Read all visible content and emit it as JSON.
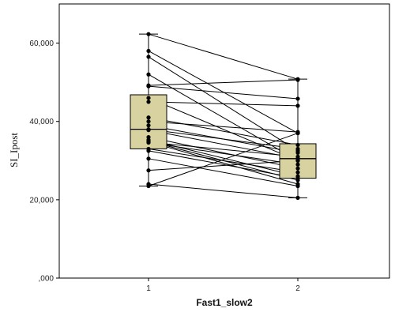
{
  "chart_data": {
    "type": "boxplot",
    "xlabel": "Fast1_slow2",
    "ylabel": "SI_Ipost",
    "categories": [
      "1",
      "2"
    ],
    "ylim": [
      0,
      70000
    ],
    "yticks": [
      0,
      20000,
      40000,
      60000
    ],
    "ytick_labels": [
      ",000",
      "20,000",
      "40,000",
      "60,000"
    ],
    "grid": false,
    "box_color": "#d8d2a0",
    "boxes": [
      {
        "category": "1",
        "whisker_low": 23500,
        "q1": 33000,
        "median": 38000,
        "q3": 46800,
        "whisker_high": 62300
      },
      {
        "category": "2",
        "whisker_low": 20500,
        "q1": 25500,
        "median": 30500,
        "q3": 34300,
        "whisker_high": 50800
      }
    ],
    "pairs": [
      [
        62300,
        50800
      ],
      [
        58000,
        37000
      ],
      [
        56500,
        32500
      ],
      [
        52000,
        30000
      ],
      [
        49200,
        50600
      ],
      [
        49000,
        45800
      ],
      [
        46000,
        30000
      ],
      [
        45000,
        44000
      ],
      [
        41000,
        34000
      ],
      [
        40000,
        37300
      ],
      [
        39000,
        32000
      ],
      [
        38000,
        33000
      ],
      [
        37800,
        30500
      ],
      [
        36000,
        28000
      ],
      [
        35300,
        26000
      ],
      [
        35000,
        25000
      ],
      [
        34800,
        24000
      ],
      [
        34700,
        31000
      ],
      [
        34600,
        29000
      ],
      [
        33000,
        27000
      ],
      [
        32500,
        25500
      ],
      [
        30500,
        23500
      ],
      [
        27500,
        30000
      ],
      [
        24000,
        20500
      ],
      [
        23500,
        37000
      ]
    ]
  }
}
